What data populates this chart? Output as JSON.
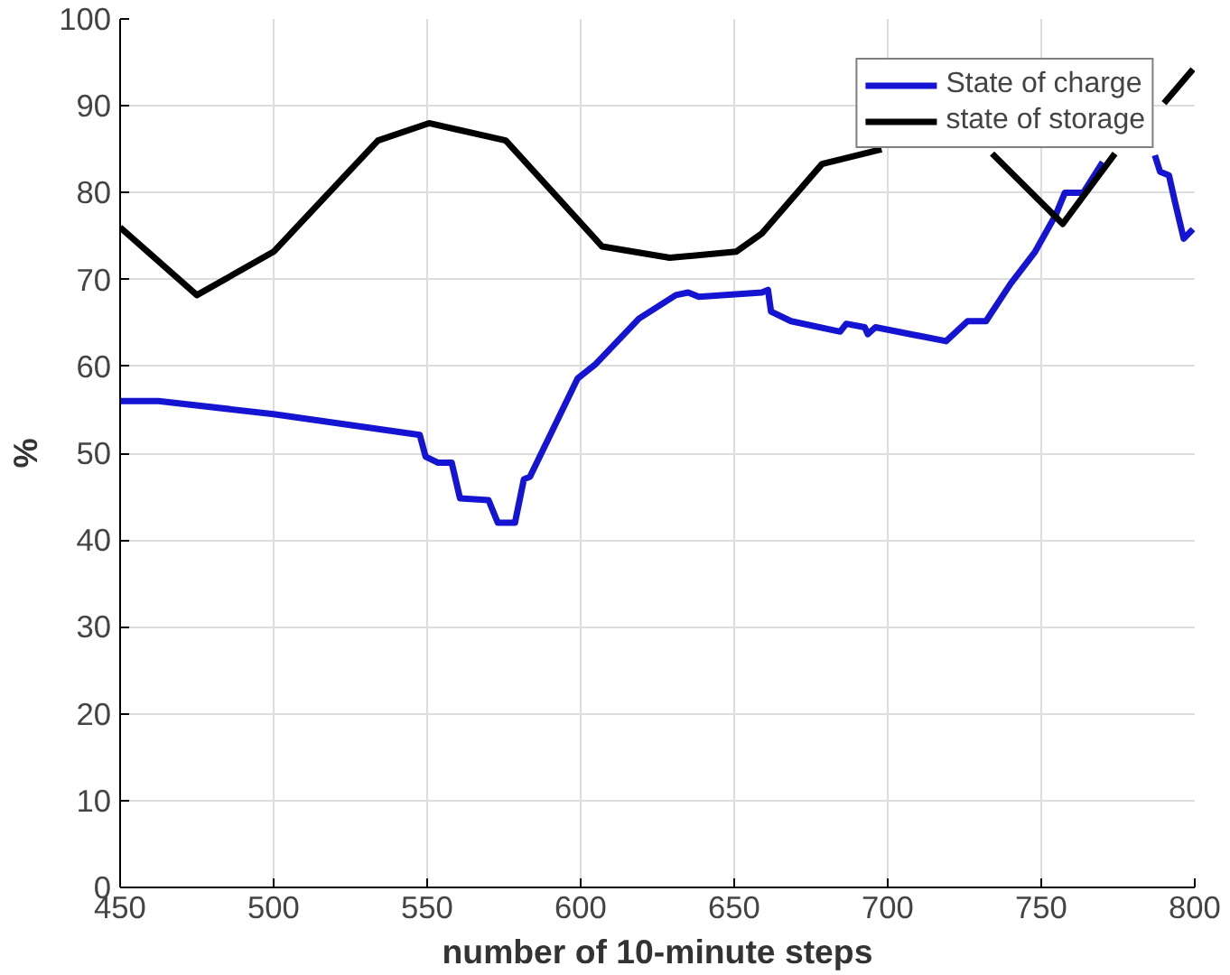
{
  "chart_data": {
    "type": "line",
    "xlabel": "number of 10-minute steps",
    "ylabel": "%",
    "xlim": [
      450,
      800
    ],
    "ylim": [
      0,
      100
    ],
    "xticks": [
      450,
      500,
      550,
      600,
      650,
      700,
      750,
      800
    ],
    "yticks": [
      0,
      10,
      20,
      30,
      40,
      50,
      60,
      70,
      80,
      90,
      100
    ],
    "grid": true,
    "legend": "top right",
    "line_style": "solid",
    "series": [
      {
        "name": "State of charge",
        "color": "#1414d2",
        "x": [
          450,
          462.5,
          500,
          547.6,
          549.5,
          553.6,
          558,
          560.7,
          570,
          573,
          578.6,
          581.5,
          583.5,
          599,
          605,
          619,
          631,
          635,
          638.5,
          659,
          661,
          662,
          668.5,
          684.5,
          686.5,
          692.5,
          693.5,
          696,
          719,
          726,
          732,
          740,
          748,
          754.8,
          757.7,
          763.7,
          770,
          780,
          787,
          788.7,
          791.6,
          793.5,
          796.4,
          799.4
        ],
        "values": [
          56.0,
          56.0,
          54.5,
          52.1,
          49.6,
          48.9,
          48.9,
          44.8,
          44.6,
          42.0,
          42.0,
          47.0,
          47.3,
          58.6,
          60.3,
          65.5,
          68.2,
          68.5,
          68.0,
          68.5,
          68.8,
          66.3,
          65.2,
          64.0,
          64.9,
          64.5,
          63.7,
          64.5,
          62.9,
          65.2,
          65.2,
          69.5,
          73.2,
          77.5,
          80.0,
          80.0,
          83.5,
          null,
          84.3,
          82.4,
          82.0,
          79.0,
          74.7,
          75.8
        ]
      },
      {
        "name": "state of storage",
        "color": "#000000",
        "x": [
          450,
          475,
          500,
          534,
          550.6,
          575.6,
          607,
          629,
          650.6,
          659,
          678.6,
          698,
          715,
          734,
          757,
          774,
          782,
          790,
          799.4
        ],
        "values": [
          76.0,
          68.2,
          73.2,
          86.0,
          88.0,
          86.0,
          73.8,
          72.5,
          73.2,
          75.3,
          83.3,
          85.0,
          null,
          84.5,
          76.4,
          84.5,
          null,
          90.3,
          94.2
        ]
      }
    ]
  }
}
